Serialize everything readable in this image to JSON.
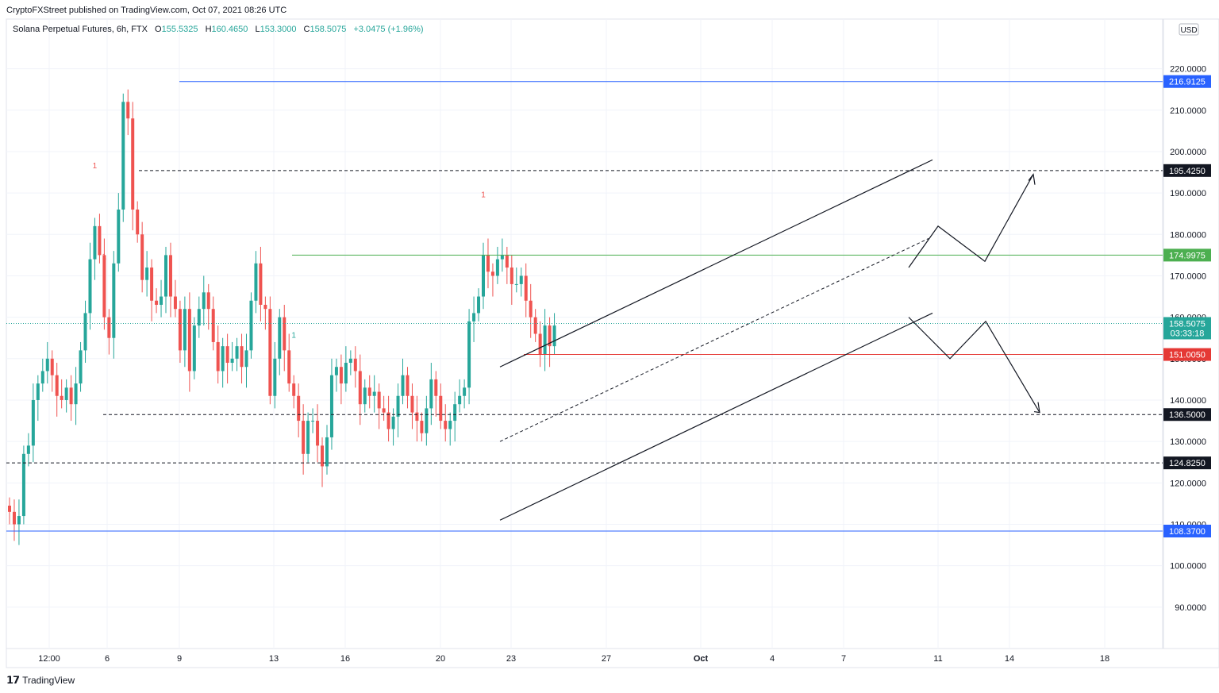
{
  "publisher": "CryptoFXStreet published on TradingView.com, Oct 07, 2021 08:26 UTC",
  "brand": "TradingView",
  "legend": {
    "instrument": "Solana Perpetual Futures, 6h, FTX",
    "open_label": "O",
    "open": "155.5325",
    "high_label": "H",
    "high": "160.4650",
    "low_label": "L",
    "low": "153.3000",
    "close_label": "C",
    "close": "158.5075",
    "change": "+3.0475 (+1.96%)"
  },
  "colors": {
    "up": "#26a69a",
    "down": "#ef5350",
    "blue_line": "#2962ff",
    "green_line": "#4caf50",
    "red_line": "#e53935",
    "dashed": "#131722"
  },
  "chart_data": {
    "type": "candlestick",
    "currency": "USD",
    "ylim": [
      80,
      232
    ],
    "y_ticks": [
      "90.0000",
      "100.0000",
      "110.0000",
      "120.0000",
      "130.0000",
      "140.0000",
      "150.0000",
      "160.0000",
      "170.0000",
      "180.0000",
      "190.0000",
      "200.0000",
      "210.0000",
      "220.0000"
    ],
    "y_tick_values": [
      90,
      100,
      110,
      120,
      130,
      140,
      150,
      160,
      170,
      180,
      190,
      200,
      210,
      220
    ],
    "x_ticks": [
      "12:00",
      "6",
      "9",
      "13",
      "16",
      "20",
      "23",
      "27",
      "Oct",
      "4",
      "7",
      "11",
      "14",
      "18"
    ],
    "x_tick_dates": [
      "2021-09-04 12:00",
      "2021-09-06",
      "2021-09-09",
      "2021-09-13",
      "2021-09-16",
      "2021-09-20",
      "2021-09-23",
      "2021-09-27",
      "2021-10-01",
      "2021-10-04",
      "2021-10-07",
      "2021-10-11",
      "2021-10-14",
      "2021-10-18"
    ],
    "candles_close": [
      113,
      110,
      112,
      127,
      129,
      140,
      144,
      147,
      150,
      146,
      141,
      140,
      143,
      139,
      144,
      152,
      161,
      174,
      182,
      175,
      160,
      155,
      173,
      186,
      212,
      208,
      186,
      180,
      169,
      172,
      164,
      163,
      165,
      175,
      165,
      162,
      152,
      162,
      147,
      158,
      162,
      166,
      162,
      154,
      147,
      153,
      149,
      150,
      153,
      148,
      152,
      164,
      173,
      163,
      162,
      141,
      150,
      160,
      152,
      144,
      141,
      135,
      127,
      135,
      135,
      129,
      124,
      131,
      146,
      148,
      144,
      149,
      150,
      147,
      139,
      143,
      141,
      142,
      138,
      137,
      133,
      136,
      141,
      146,
      141,
      137,
      135,
      132,
      138,
      145,
      141,
      135,
      133,
      135,
      139,
      141,
      143,
      159,
      161,
      165,
      175,
      171,
      170,
      174,
      175,
      172,
      168,
      168,
      170,
      164,
      160,
      156,
      151,
      158,
      153,
      158
    ],
    "horizontal_levels": [
      {
        "label": "216.9125",
        "value": 216.9125,
        "style": "solid",
        "color": "blue"
      },
      {
        "label": "195.4250",
        "value": 195.425,
        "style": "dashed",
        "color": "black"
      },
      {
        "label": "174.9975",
        "value": 174.9975,
        "style": "solid",
        "color": "green"
      },
      {
        "label": "151.0050",
        "value": 151.005,
        "style": "solid",
        "color": "red"
      },
      {
        "label": "136.5000",
        "value": 136.5,
        "style": "dashed",
        "color": "black"
      },
      {
        "label": "124.8250",
        "value": 124.825,
        "style": "dashed",
        "color": "black"
      },
      {
        "label": "108.3700",
        "value": 108.37,
        "style": "solid",
        "color": "blue"
      }
    ],
    "current_price": {
      "label": "158.5075",
      "countdown": "03:33:18"
    },
    "markers": [
      {
        "text": "1",
        "candle": 18,
        "color": "red"
      },
      {
        "text": "1",
        "candle": 20,
        "color": "red"
      },
      {
        "text": "1",
        "candle": 60,
        "color": "green"
      },
      {
        "text": "1",
        "candle": 100,
        "color": "red"
      }
    ]
  }
}
